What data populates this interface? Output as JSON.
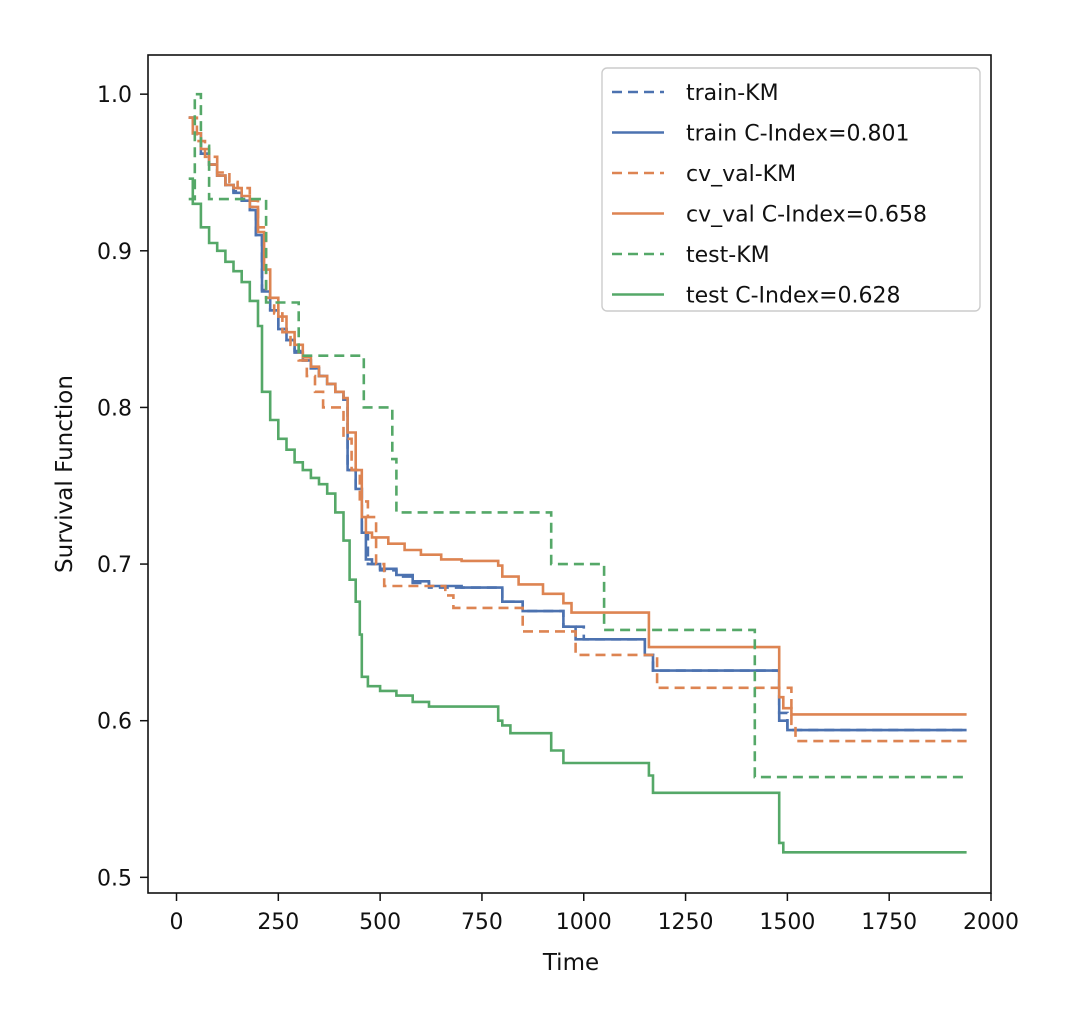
{
  "chart_data": {
    "type": "line",
    "title": "",
    "xlabel": "Time",
    "ylabel": "Survival Function",
    "xlim": [
      -70,
      2000
    ],
    "ylim": [
      0.49,
      1.025
    ],
    "xticks": [
      0,
      250,
      500,
      750,
      1000,
      1250,
      1500,
      1750,
      2000
    ],
    "yticks": [
      0.5,
      0.6,
      0.7,
      0.8,
      0.9,
      1.0
    ],
    "xtick_labels": [
      "0",
      "250",
      "500",
      "750",
      "1000",
      "1250",
      "1500",
      "1750",
      "2000"
    ],
    "ytick_labels": [
      "0.5",
      "0.6",
      "0.7",
      "0.8",
      "0.9",
      "1.0"
    ],
    "legend_position": "top-right",
    "series": [
      {
        "name": "train-KM",
        "color": "#4c72b0",
        "dash": "dashed",
        "points": [
          [
            30,
            0.985
          ],
          [
            40,
            0.975
          ],
          [
            60,
            0.962
          ],
          [
            80,
            0.955
          ],
          [
            100,
            0.948
          ],
          [
            120,
            0.942
          ],
          [
            140,
            0.938
          ],
          [
            160,
            0.933
          ],
          [
            180,
            0.928
          ],
          [
            195,
            0.91
          ],
          [
            210,
            0.875
          ],
          [
            230,
            0.862
          ],
          [
            250,
            0.85
          ],
          [
            270,
            0.843
          ],
          [
            290,
            0.836
          ],
          [
            310,
            0.83
          ],
          [
            330,
            0.825
          ],
          [
            350,
            0.82
          ],
          [
            370,
            0.815
          ],
          [
            390,
            0.81
          ],
          [
            410,
            0.805
          ],
          [
            420,
            0.76
          ],
          [
            440,
            0.748
          ],
          [
            455,
            0.72
          ],
          [
            470,
            0.7
          ],
          [
            480,
            0.7
          ],
          [
            500,
            0.696
          ],
          [
            540,
            0.692
          ],
          [
            580,
            0.688
          ],
          [
            620,
            0.685
          ],
          [
            700,
            0.685
          ],
          [
            800,
            0.676
          ],
          [
            850,
            0.67
          ],
          [
            950,
            0.66
          ],
          [
            1000,
            0.652
          ],
          [
            1100,
            0.652
          ],
          [
            1150,
            0.642
          ],
          [
            1170,
            0.632
          ],
          [
            1300,
            0.632
          ],
          [
            1470,
            0.632
          ],
          [
            1480,
            0.605
          ],
          [
            1500,
            0.594
          ],
          [
            1940,
            0.594
          ]
        ]
      },
      {
        "name": "train C-Index=0.801",
        "color": "#4c72b0",
        "dash": "solid",
        "points": [
          [
            30,
            0.985
          ],
          [
            40,
            0.975
          ],
          [
            60,
            0.962
          ],
          [
            80,
            0.955
          ],
          [
            100,
            0.948
          ],
          [
            120,
            0.942
          ],
          [
            140,
            0.937
          ],
          [
            160,
            0.932
          ],
          [
            180,
            0.926
          ],
          [
            195,
            0.91
          ],
          [
            210,
            0.874
          ],
          [
            230,
            0.862
          ],
          [
            250,
            0.85
          ],
          [
            270,
            0.843
          ],
          [
            290,
            0.835
          ],
          [
            310,
            0.83
          ],
          [
            330,
            0.825
          ],
          [
            350,
            0.82
          ],
          [
            370,
            0.815
          ],
          [
            390,
            0.81
          ],
          [
            410,
            0.805
          ],
          [
            420,
            0.76
          ],
          [
            440,
            0.748
          ],
          [
            455,
            0.72
          ],
          [
            465,
            0.703
          ],
          [
            480,
            0.7
          ],
          [
            500,
            0.697
          ],
          [
            540,
            0.693
          ],
          [
            580,
            0.689
          ],
          [
            620,
            0.686
          ],
          [
            700,
            0.685
          ],
          [
            790,
            0.685
          ],
          [
            800,
            0.676
          ],
          [
            850,
            0.67
          ],
          [
            950,
            0.66
          ],
          [
            980,
            0.652
          ],
          [
            1150,
            0.642
          ],
          [
            1170,
            0.632
          ],
          [
            1470,
            0.632
          ],
          [
            1480,
            0.6
          ],
          [
            1500,
            0.594
          ],
          [
            1940,
            0.594
          ]
        ]
      },
      {
        "name": "cv_val-KM",
        "color": "#dd8452",
        "dash": "dashed",
        "points": [
          [
            30,
            0.985
          ],
          [
            50,
            0.97
          ],
          [
            70,
            0.96
          ],
          [
            100,
            0.95
          ],
          [
            130,
            0.944
          ],
          [
            150,
            0.94
          ],
          [
            180,
            0.932
          ],
          [
            200,
            0.915
          ],
          [
            220,
            0.87
          ],
          [
            240,
            0.86
          ],
          [
            260,
            0.848
          ],
          [
            280,
            0.84
          ],
          [
            300,
            0.83
          ],
          [
            320,
            0.82
          ],
          [
            340,
            0.81
          ],
          [
            360,
            0.8
          ],
          [
            400,
            0.8
          ],
          [
            410,
            0.78
          ],
          [
            430,
            0.76
          ],
          [
            450,
            0.74
          ],
          [
            470,
            0.73
          ],
          [
            490,
            0.7
          ],
          [
            510,
            0.686
          ],
          [
            600,
            0.686
          ],
          [
            660,
            0.68
          ],
          [
            680,
            0.672
          ],
          [
            800,
            0.672
          ],
          [
            850,
            0.657
          ],
          [
            950,
            0.657
          ],
          [
            980,
            0.642
          ],
          [
            1150,
            0.642
          ],
          [
            1180,
            0.621
          ],
          [
            1380,
            0.621
          ],
          [
            1510,
            0.598
          ],
          [
            1520,
            0.587
          ],
          [
            1940,
            0.587
          ]
        ]
      },
      {
        "name": "cv_val C-Index=0.658",
        "color": "#dd8452",
        "dash": "solid",
        "points": [
          [
            30,
            0.985
          ],
          [
            40,
            0.975
          ],
          [
            60,
            0.965
          ],
          [
            80,
            0.955
          ],
          [
            100,
            0.948
          ],
          [
            120,
            0.942
          ],
          [
            140,
            0.94
          ],
          [
            160,
            0.935
          ],
          [
            180,
            0.928
          ],
          [
            200,
            0.912
          ],
          [
            215,
            0.888
          ],
          [
            230,
            0.87
          ],
          [
            250,
            0.858
          ],
          [
            270,
            0.848
          ],
          [
            290,
            0.84
          ],
          [
            310,
            0.832
          ],
          [
            330,
            0.826
          ],
          [
            350,
            0.82
          ],
          [
            370,
            0.815
          ],
          [
            390,
            0.81
          ],
          [
            410,
            0.806
          ],
          [
            420,
            0.784
          ],
          [
            440,
            0.76
          ],
          [
            455,
            0.73
          ],
          [
            465,
            0.72
          ],
          [
            480,
            0.717
          ],
          [
            520,
            0.713
          ],
          [
            560,
            0.709
          ],
          [
            600,
            0.706
          ],
          [
            650,
            0.703
          ],
          [
            700,
            0.702
          ],
          [
            790,
            0.699
          ],
          [
            800,
            0.692
          ],
          [
            840,
            0.687
          ],
          [
            900,
            0.681
          ],
          [
            950,
            0.675
          ],
          [
            970,
            0.669
          ],
          [
            1150,
            0.669
          ],
          [
            1160,
            0.647
          ],
          [
            1470,
            0.647
          ],
          [
            1480,
            0.615
          ],
          [
            1490,
            0.608
          ],
          [
            1510,
            0.604
          ],
          [
            1940,
            0.604
          ]
        ]
      },
      {
        "name": "test-KM",
        "color": "#55a868",
        "dash": "dashed",
        "points": [
          [
            30,
            0.933
          ],
          [
            45,
            1.0
          ],
          [
            60,
            0.967
          ],
          [
            80,
            0.933
          ],
          [
            200,
            0.933
          ],
          [
            220,
            0.867
          ],
          [
            280,
            0.867
          ],
          [
            300,
            0.833
          ],
          [
            450,
            0.833
          ],
          [
            460,
            0.8
          ],
          [
            520,
            0.8
          ],
          [
            530,
            0.767
          ],
          [
            540,
            0.733
          ],
          [
            910,
            0.733
          ],
          [
            920,
            0.7
          ],
          [
            1040,
            0.7
          ],
          [
            1050,
            0.658
          ],
          [
            1160,
            0.658
          ],
          [
            1170,
            0.658
          ],
          [
            1410,
            0.658
          ],
          [
            1420,
            0.564
          ],
          [
            1940,
            0.564
          ]
        ]
      },
      {
        "name": "test C-Index=0.628",
        "color": "#55a868",
        "dash": "solid",
        "points": [
          [
            30,
            0.946
          ],
          [
            40,
            0.93
          ],
          [
            60,
            0.915
          ],
          [
            80,
            0.905
          ],
          [
            100,
            0.9
          ],
          [
            120,
            0.893
          ],
          [
            140,
            0.887
          ],
          [
            160,
            0.88
          ],
          [
            180,
            0.868
          ],
          [
            200,
            0.852
          ],
          [
            210,
            0.81
          ],
          [
            230,
            0.792
          ],
          [
            250,
            0.78
          ],
          [
            270,
            0.773
          ],
          [
            290,
            0.765
          ],
          [
            310,
            0.76
          ],
          [
            330,
            0.755
          ],
          [
            350,
            0.751
          ],
          [
            370,
            0.745
          ],
          [
            390,
            0.733
          ],
          [
            410,
            0.715
          ],
          [
            425,
            0.69
          ],
          [
            440,
            0.676
          ],
          [
            450,
            0.655
          ],
          [
            455,
            0.628
          ],
          [
            470,
            0.622
          ],
          [
            500,
            0.619
          ],
          [
            540,
            0.616
          ],
          [
            580,
            0.612
          ],
          [
            620,
            0.609
          ],
          [
            780,
            0.609
          ],
          [
            790,
            0.6
          ],
          [
            800,
            0.597
          ],
          [
            820,
            0.592
          ],
          [
            900,
            0.592
          ],
          [
            920,
            0.581
          ],
          [
            950,
            0.573
          ],
          [
            1140,
            0.573
          ],
          [
            1160,
            0.565
          ],
          [
            1170,
            0.554
          ],
          [
            1470,
            0.554
          ],
          [
            1480,
            0.522
          ],
          [
            1490,
            0.516
          ],
          [
            1940,
            0.516
          ]
        ]
      }
    ]
  }
}
